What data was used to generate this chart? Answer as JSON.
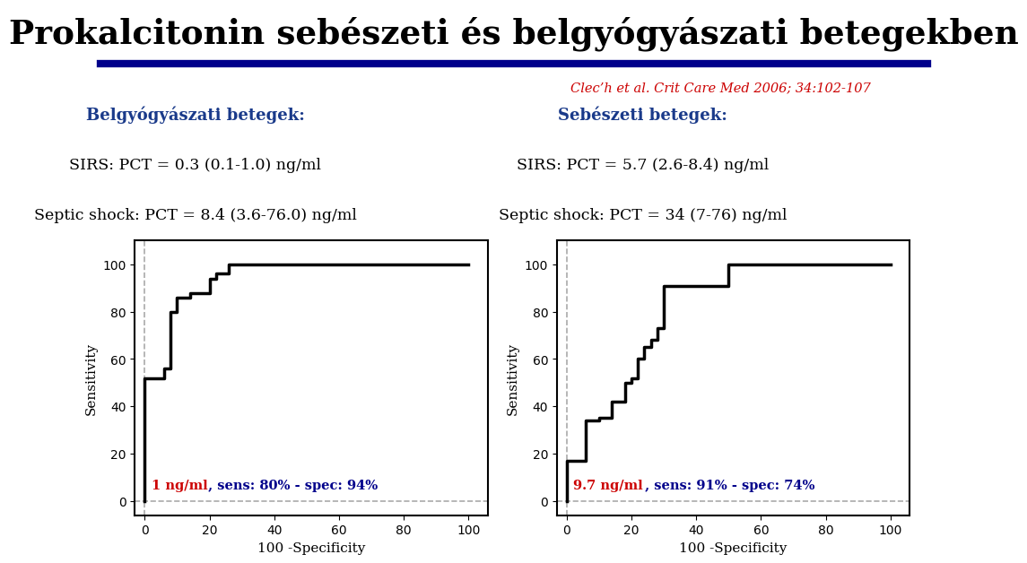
{
  "title_display": "Prokalcitonin sebészeti és belgyógyászati betegekben",
  "subtitle": "Clec’h et al. Crit Care Med 2006; 34:102-107",
  "left_header1": "Belgyógyászati betegek:",
  "left_header2": "SIRS: PCT = 0.3 (0.1-1.0) ng/ml",
  "left_header3": "Septic shock: PCT = 8.4 (3.6-76.0) ng/ml",
  "right_header1": "Sebészeti betegek:",
  "right_header2": "SIRS: PCT = 5.7 (2.6-8.4) ng/ml",
  "right_header3": "Septic shock: PCT = 34 (7-76) ng/ml",
  "left_ann_red": "1 ng/ml",
  "left_ann_blue": " , sens: 80% - spec: 94%",
  "right_ann_red": "9.7 ng/ml",
  "right_ann_blue": " , sens: 91% - spec: 74%",
  "roc1_x": [
    0,
    0,
    6,
    6,
    8,
    8,
    10,
    10,
    14,
    14,
    20,
    20,
    22,
    22,
    26,
    26,
    28,
    28,
    60,
    60,
    100
  ],
  "roc1_y": [
    0,
    52,
    52,
    56,
    56,
    80,
    80,
    86,
    86,
    88,
    88,
    94,
    94,
    96,
    96,
    100,
    100,
    100,
    100,
    100,
    100
  ],
  "roc2_x": [
    0,
    0,
    6,
    6,
    10,
    10,
    14,
    14,
    18,
    18,
    20,
    20,
    22,
    22,
    24,
    24,
    26,
    26,
    28,
    28,
    30,
    30,
    50,
    50,
    56,
    56,
    100
  ],
  "roc2_y": [
    0,
    17,
    17,
    34,
    34,
    35,
    35,
    42,
    42,
    50,
    50,
    52,
    52,
    60,
    60,
    65,
    65,
    68,
    68,
    73,
    73,
    91,
    91,
    100,
    100,
    100,
    100
  ],
  "line_color": "#000000",
  "bg_color": "#ffffff",
  "header_color": "#1a3a8a",
  "title_color": "#000000",
  "subtitle_color": "#cc0000",
  "divider_color": "#00008b",
  "ann_red_color": "#cc0000",
  "ann_blue_color": "#00008b",
  "dashed_color": "#aaaaaa"
}
